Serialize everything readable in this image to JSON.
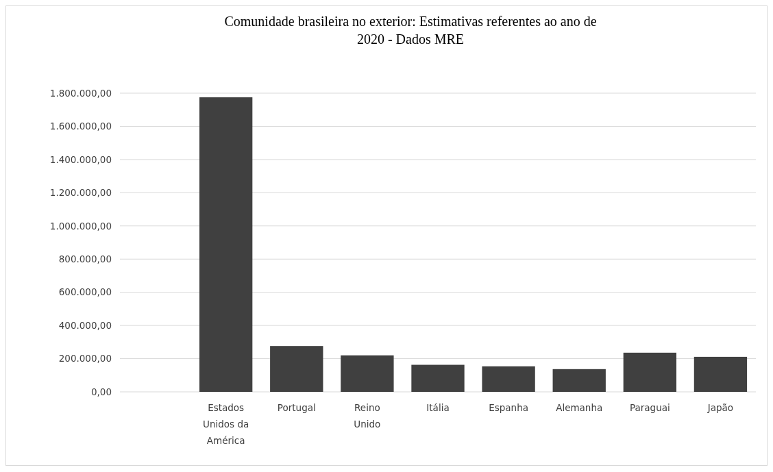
{
  "chart_data": {
    "type": "bar",
    "title": "Comunidade brasileira no exterior: Estimativas referentes ao ano de 2020 - Dados MRE",
    "categories": [
      null,
      "Estados Unidos da América",
      "Portugal",
      "Reino Unido",
      "Itália",
      "Espanha",
      "Alemanha",
      "Paraguai",
      "Japão"
    ],
    "values": [
      null,
      1775000,
      276000,
      220000,
      163000,
      154000,
      137000,
      236000,
      211000
    ],
    "color": "#404040",
    "ylim": [
      0,
      1800000
    ],
    "yticks": [
      {
        "value": 0,
        "label": "0,00"
      },
      {
        "value": 200000,
        "label": "200.000,00"
      },
      {
        "value": 400000,
        "label": "400.000,00"
      },
      {
        "value": 600000,
        "label": "600.000,00"
      },
      {
        "value": 800000,
        "label": "800.000,00"
      },
      {
        "value": 1000000,
        "label": "1.000.000,00"
      },
      {
        "value": 1200000,
        "label": "1.200.000,00"
      },
      {
        "value": 1400000,
        "label": "1.400.000,00"
      },
      {
        "value": 1600000,
        "label": "1.600.000,00"
      },
      {
        "value": 1800000,
        "label": "1.800.000,00"
      }
    ],
    "grid": "y"
  }
}
